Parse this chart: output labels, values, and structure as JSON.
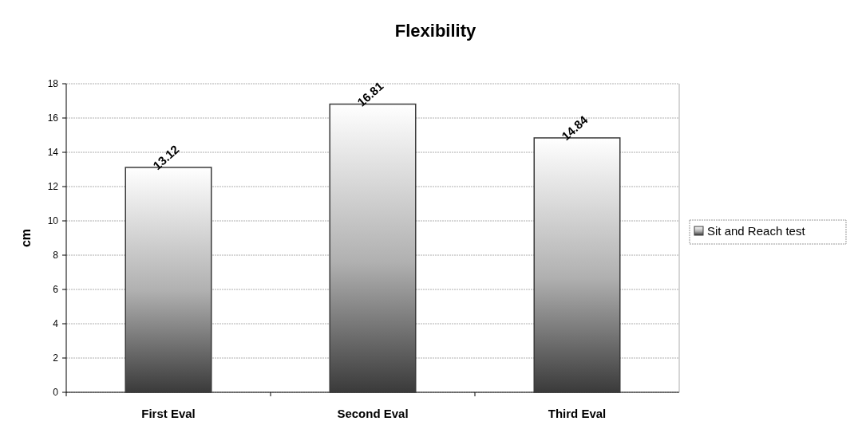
{
  "chart_data": {
    "type": "bar",
    "title": "Flexibility",
    "ylabel": "cm",
    "categories": [
      "First Eval",
      "Second Eval",
      "Third Eval"
    ],
    "series": [
      {
        "name": "Sit and Reach test",
        "color": "#3a3a3a",
        "values": [
          13.12,
          16.81,
          14.84
        ]
      }
    ],
    "ylim": [
      0,
      18
    ],
    "yticks": [
      0,
      2,
      4,
      6,
      8,
      10,
      12,
      14,
      16,
      18
    ],
    "grid": "y",
    "legend": "right",
    "data_labels": true
  }
}
